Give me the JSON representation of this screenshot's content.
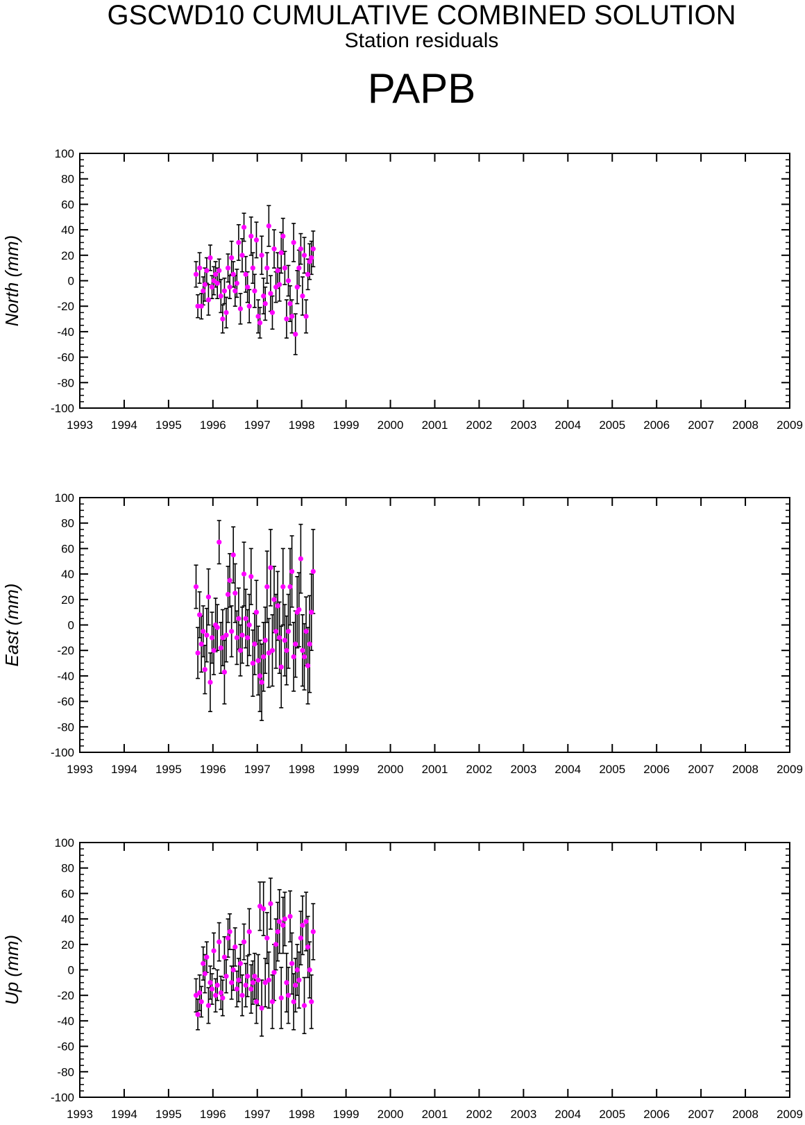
{
  "header": {
    "title": "GSCWD10 CUMULATIVE COMBINED SOLUTION",
    "subtitle": "Station residuals",
    "station": "PAPB"
  },
  "colors": {
    "point": "#ff00ff",
    "errorbar": "#000000",
    "axis": "#000000"
  },
  "chart_data": [
    {
      "type": "scatter",
      "title": "",
      "xlabel": "",
      "ylabel": "North (mm)",
      "xlim": [
        1993,
        2009
      ],
      "ylim": [
        -100,
        100
      ],
      "xticks": [
        "1993",
        "1994",
        "1995",
        "1996",
        "1997",
        "1998",
        "1999",
        "2000",
        "2001",
        "2002",
        "2003",
        "2004",
        "2005",
        "2006",
        "2007",
        "2008",
        "2009"
      ],
      "yticks": [
        "100",
        "80",
        "60",
        "40",
        "20",
        "0",
        "-20",
        "-40",
        "-60",
        "-80",
        "-100"
      ],
      "grid": false,
      "series": [
        {
          "x": [
            1995.62,
            1995.66,
            1995.7,
            1995.74,
            1995.78,
            1995.82,
            1995.86,
            1995.9,
            1995.94,
            1995.98,
            1996.02,
            1996.06,
            1996.1,
            1996.14,
            1996.18,
            1996.22,
            1996.26,
            1996.3,
            1996.34,
            1996.38,
            1996.42,
            1996.46,
            1996.5,
            1996.54,
            1996.58,
            1996.62,
            1996.66,
            1996.7,
            1996.74,
            1996.78,
            1996.82,
            1996.86,
            1996.9,
            1996.94,
            1996.98,
            1997.02,
            1997.06,
            1997.1,
            1997.14,
            1997.18,
            1997.22,
            1997.26,
            1997.3,
            1997.34,
            1997.38,
            1997.42,
            1997.46,
            1997.5,
            1997.54,
            1997.58,
            1997.62,
            1997.66,
            1997.7,
            1997.74,
            1997.78,
            1997.82,
            1997.86,
            1997.9,
            1997.94,
            1997.98,
            1998.02,
            1998.06,
            1998.1,
            1998.14,
            1998.18,
            1998.22,
            1998.26
          ],
          "y": [
            5,
            -20,
            10,
            -20,
            -8,
            -3,
            8,
            -15,
            18,
            -5,
            0,
            5,
            -2,
            8,
            -12,
            -30,
            -8,
            -25,
            10,
            -5,
            18,
            5,
            -8,
            -2,
            30,
            -22,
            20,
            42,
            5,
            -5,
            -20,
            35,
            10,
            -8,
            32,
            -28,
            -33,
            20,
            -12,
            -18,
            10,
            43,
            -10,
            -25,
            25,
            -5,
            8,
            -3,
            22,
            35,
            10,
            -30,
            0,
            -18,
            -28,
            30,
            -42,
            -5,
            10,
            25,
            -12,
            20,
            -28,
            5,
            15,
            18,
            25
          ],
          "err": [
            10,
            9,
            12,
            10,
            11,
            13,
            10,
            12,
            10,
            9,
            11,
            10,
            12,
            9,
            13,
            11,
            10,
            12,
            11,
            9,
            13,
            10,
            12,
            11,
            14,
            12,
            13,
            11,
            14,
            12,
            13,
            15,
            12,
            13,
            14,
            13,
            12,
            15,
            14,
            13,
            12,
            16,
            14,
            13,
            15,
            12,
            14,
            13,
            16,
            14,
            13,
            15,
            12,
            14,
            13,
            15,
            16,
            13,
            14,
            12,
            15,
            14,
            13,
            12,
            14,
            13,
            14
          ]
        }
      ]
    },
    {
      "type": "scatter",
      "title": "",
      "xlabel": "",
      "ylabel": "East (mm)",
      "xlim": [
        1993,
        2009
      ],
      "ylim": [
        -100,
        100
      ],
      "xticks": [
        "1993",
        "1994",
        "1995",
        "1996",
        "1997",
        "1998",
        "1999",
        "2000",
        "2001",
        "2002",
        "2003",
        "2004",
        "2005",
        "2006",
        "2007",
        "2008",
        "2009"
      ],
      "yticks": [
        "100",
        "80",
        "60",
        "40",
        "20",
        "0",
        "-20",
        "-40",
        "-60",
        "-80",
        "-100"
      ],
      "grid": false,
      "series": [
        {
          "x": [
            1995.62,
            1995.66,
            1995.7,
            1995.74,
            1995.78,
            1995.82,
            1995.86,
            1995.9,
            1995.94,
            1995.98,
            1996.02,
            1996.06,
            1996.1,
            1996.14,
            1996.18,
            1996.22,
            1996.26,
            1996.3,
            1996.34,
            1996.38,
            1996.42,
            1996.46,
            1996.5,
            1996.54,
            1996.58,
            1996.62,
            1996.66,
            1996.7,
            1996.74,
            1996.78,
            1996.82,
            1996.86,
            1996.9,
            1996.94,
            1996.98,
            1997.02,
            1997.06,
            1997.1,
            1997.14,
            1997.18,
            1997.22,
            1997.26,
            1997.3,
            1997.34,
            1997.38,
            1997.42,
            1997.46,
            1997.5,
            1997.54,
            1997.58,
            1997.62,
            1997.66,
            1997.7,
            1997.74,
            1997.78,
            1997.82,
            1997.86,
            1997.9,
            1997.94,
            1997.98,
            1998.02,
            1998.06,
            1998.1,
            1998.14,
            1998.18,
            1998.22,
            1998.26
          ],
          "y": [
            30,
            -22,
            8,
            -15,
            -5,
            -35,
            -8,
            22,
            -45,
            -10,
            -20,
            0,
            -2,
            65,
            -18,
            -10,
            -37,
            -8,
            24,
            35,
            -5,
            55,
            25,
            -10,
            5,
            -20,
            -8,
            40,
            5,
            -10,
            0,
            38,
            -30,
            -15,
            10,
            -28,
            -40,
            -45,
            -25,
            -12,
            30,
            -22,
            45,
            -20,
            20,
            -5,
            15,
            -10,
            -33,
            30,
            -12,
            -20,
            -5,
            30,
            42,
            -25,
            -15,
            10,
            12,
            52,
            -20,
            -25,
            -5,
            -32,
            -15,
            10,
            42
          ],
          "err": [
            17,
            20,
            18,
            22,
            20,
            19,
            21,
            22,
            23,
            20,
            19,
            21,
            18,
            17,
            20,
            22,
            25,
            21,
            22,
            21,
            20,
            22,
            23,
            21,
            24,
            20,
            22,
            25,
            23,
            22,
            24,
            22,
            26,
            24,
            25,
            27,
            28,
            30,
            27,
            26,
            28,
            27,
            30,
            28,
            26,
            29,
            27,
            28,
            32,
            30,
            28,
            27,
            29,
            30,
            28,
            27,
            26,
            28,
            29,
            27,
            28,
            26,
            27,
            30,
            38,
            30,
            33
          ]
        }
      ]
    },
    {
      "type": "scatter",
      "title": "",
      "xlabel": "",
      "ylabel": "Up (mm)",
      "xlim": [
        1993,
        2009
      ],
      "ylim": [
        -100,
        100
      ],
      "xticks": [
        "1993",
        "1994",
        "1995",
        "1996",
        "1997",
        "1998",
        "1999",
        "2000",
        "2001",
        "2002",
        "2003",
        "2004",
        "2005",
        "2006",
        "2007",
        "2008",
        "2009"
      ],
      "yticks": [
        "100",
        "80",
        "60",
        "40",
        "20",
        "0",
        "-20",
        "-40",
        "-60",
        "-80",
        "-100"
      ],
      "grid": false,
      "series": [
        {
          "x": [
            1995.62,
            1995.66,
            1995.7,
            1995.74,
            1995.78,
            1995.82,
            1995.86,
            1995.9,
            1995.94,
            1995.98,
            1996.02,
            1996.06,
            1996.1,
            1996.14,
            1996.18,
            1996.22,
            1996.26,
            1996.3,
            1996.34,
            1996.38,
            1996.42,
            1996.46,
            1996.5,
            1996.54,
            1996.58,
            1996.62,
            1996.66,
            1996.7,
            1996.74,
            1996.78,
            1996.82,
            1996.86,
            1996.9,
            1996.94,
            1996.98,
            1997.02,
            1997.06,
            1997.1,
            1997.14,
            1997.18,
            1997.22,
            1997.26,
            1997.3,
            1997.34,
            1997.38,
            1997.42,
            1997.46,
            1997.5,
            1997.54,
            1997.58,
            1997.62,
            1997.66,
            1997.7,
            1997.74,
            1997.78,
            1997.82,
            1997.86,
            1997.9,
            1997.94,
            1997.98,
            1998.02,
            1998.06,
            1998.1,
            1998.14,
            1998.18,
            1998.22,
            1998.26
          ],
          "y": [
            -20,
            -35,
            -18,
            -25,
            5,
            -3,
            10,
            -28,
            -10,
            -15,
            15,
            -20,
            -12,
            22,
            -18,
            -22,
            10,
            -5,
            25,
            30,
            -10,
            0,
            18,
            -15,
            -8,
            5,
            -20,
            22,
            -12,
            -5,
            30,
            -15,
            -10,
            -5,
            -25,
            -8,
            50,
            -30,
            48,
            -10,
            25,
            -8,
            52,
            -25,
            -2,
            20,
            30,
            38,
            -22,
            35,
            40,
            -10,
            -20,
            42,
            5,
            -25,
            -12,
            0,
            -8,
            25,
            35,
            -28,
            38,
            18,
            0,
            -25,
            30
          ],
          "err": [
            13,
            12,
            14,
            12,
            13,
            15,
            12,
            14,
            13,
            12,
            14,
            13,
            12,
            15,
            13,
            14,
            16,
            13,
            15,
            14,
            13,
            16,
            15,
            14,
            17,
            15,
            16,
            14,
            17,
            16,
            18,
            19,
            17,
            18,
            17,
            20,
            19,
            22,
            21,
            19,
            20,
            22,
            20,
            21,
            22,
            20,
            23,
            25,
            24,
            22,
            21,
            23,
            22,
            20,
            24,
            22,
            21,
            20,
            22,
            21,
            23,
            22,
            23,
            24,
            22,
            21,
            22
          ]
        }
      ]
    }
  ]
}
